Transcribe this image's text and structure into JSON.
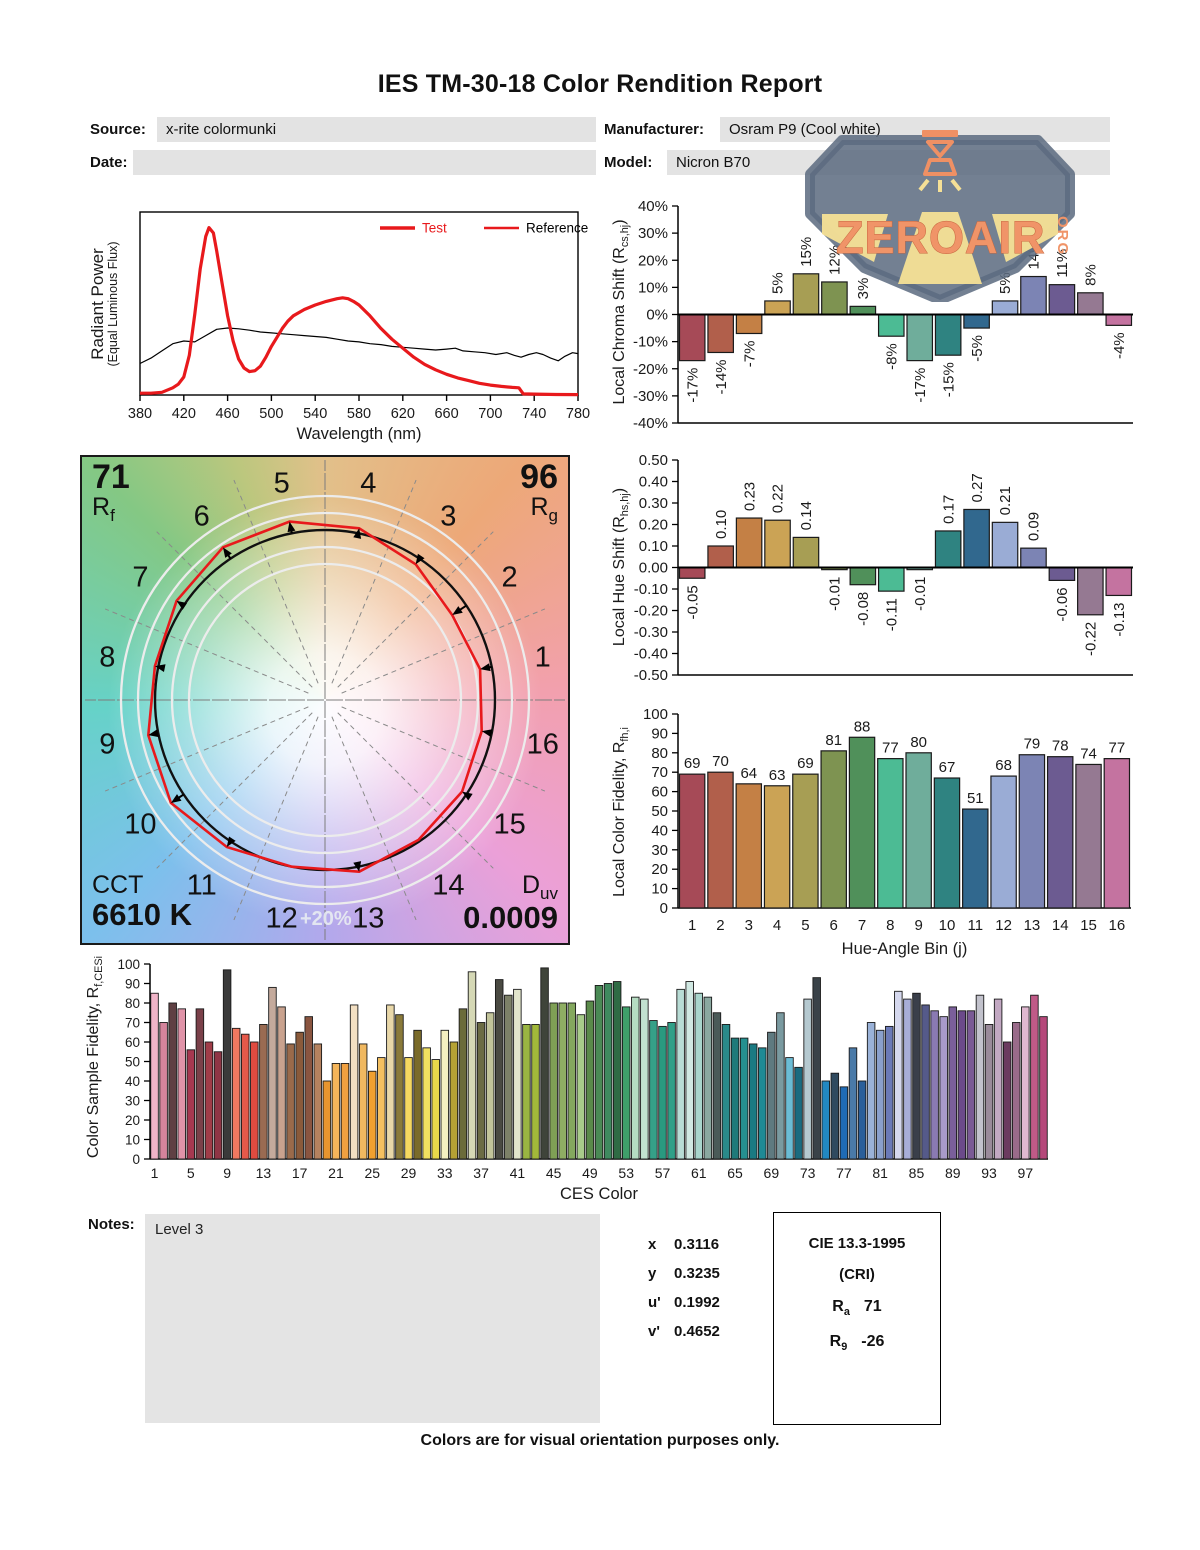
{
  "title": "IES TM-30-18 Color Rendition Report",
  "meta": {
    "source_label": "Source:",
    "source": "x-rite colormunki",
    "date_label": "Date:",
    "date": "",
    "manufacturer_label": "Manufacturer:",
    "manufacturer": "Osram P9 (Cool white)",
    "model_label": "Model:",
    "model": "Nicron B70"
  },
  "logo": {
    "word": "ZEROAIR",
    "org": "ORG"
  },
  "notes": {
    "label": "Notes:",
    "text": "Level 3"
  },
  "cie": {
    "x_label": "x",
    "x": "0.3116",
    "y_label": "y",
    "y": "0.3235",
    "u_label": "u'",
    "u": "0.1992",
    "v_label": "v'",
    "v": "0.4652"
  },
  "cri": {
    "title": "CIE 13.3-1995",
    "subtitle": "(CRI)",
    "ra_main": "R",
    "ra_sub": "a",
    "ra_value": "71",
    "r9_main": "R",
    "r9_sub": "9",
    "r9_value": "-26"
  },
  "footer": "Colors are for visual orientation purposes only.",
  "accent_red": "#e8191c",
  "hue_bin_colors": [
    "#a64a57",
    "#b15f4b",
    "#c48045",
    "#cba355",
    "#a79e54",
    "#7e9351",
    "#50905a",
    "#4cbb94",
    "#6fad9b",
    "#2f8381",
    "#31688e",
    "#9aacd5",
    "#7c84b4",
    "#6c5b91",
    "#957992",
    "#c473a0"
  ],
  "chart_data": [
    {
      "id": "spd",
      "type": "line",
      "xlabel": "Wavelength (nm)",
      "ylabel1": "Radiant Power",
      "ylabel2": "(Equal Luminous Flux)",
      "x_ticks": [
        380,
        420,
        460,
        500,
        540,
        580,
        620,
        660,
        700,
        740,
        780
      ],
      "legend": [
        {
          "label": "Test",
          "line_color": "#e8191c",
          "text_color": "#e8191c",
          "width": 3.4
        },
        {
          "label": "Reference",
          "line_color": "#e8191c",
          "text_color": "#000000",
          "width": 2.4
        }
      ],
      "series": [
        {
          "name": "Test",
          "color": "#e8191c",
          "width": 3.2,
          "x": [
            380,
            390,
            400,
            410,
            415,
            420,
            425,
            430,
            435,
            440,
            443,
            447,
            450,
            455,
            460,
            465,
            470,
            475,
            480,
            485,
            490,
            495,
            500,
            505,
            510,
            515,
            520,
            530,
            540,
            550,
            560,
            565,
            570,
            575,
            580,
            590,
            600,
            610,
            620,
            630,
            640,
            650,
            660,
            670,
            680,
            690,
            700,
            710,
            720,
            726,
            730,
            740,
            760,
            780
          ],
          "y": [
            0.01,
            0.01,
            0.015,
            0.04,
            0.06,
            0.1,
            0.22,
            0.45,
            0.7,
            0.88,
            0.93,
            0.9,
            0.8,
            0.62,
            0.44,
            0.3,
            0.2,
            0.15,
            0.13,
            0.135,
            0.16,
            0.21,
            0.27,
            0.32,
            0.37,
            0.41,
            0.44,
            0.475,
            0.5,
            0.52,
            0.535,
            0.54,
            0.535,
            0.52,
            0.5,
            0.44,
            0.37,
            0.31,
            0.26,
            0.21,
            0.17,
            0.14,
            0.115,
            0.095,
            0.08,
            0.065,
            0.055,
            0.048,
            0.042,
            0.04,
            0.006,
            0.005,
            0.003,
            0.002
          ]
        },
        {
          "name": "Reference",
          "color": "#000000",
          "width": 1.2,
          "x": [
            380,
            390,
            400,
            410,
            420,
            430,
            440,
            450,
            460,
            470,
            480,
            490,
            500,
            510,
            520,
            530,
            540,
            550,
            560,
            570,
            580,
            590,
            600,
            610,
            620,
            630,
            640,
            650,
            660,
            668,
            675,
            685,
            695,
            705,
            715,
            722,
            728,
            735,
            742,
            748,
            755,
            762,
            768,
            775,
            780
          ],
          "y": [
            0.175,
            0.205,
            0.245,
            0.285,
            0.3,
            0.295,
            0.33,
            0.365,
            0.372,
            0.368,
            0.36,
            0.35,
            0.345,
            0.34,
            0.335,
            0.33,
            0.325,
            0.32,
            0.31,
            0.3,
            0.295,
            0.285,
            0.28,
            0.27,
            0.265,
            0.26,
            0.255,
            0.25,
            0.255,
            0.26,
            0.245,
            0.24,
            0.235,
            0.225,
            0.235,
            0.22,
            0.21,
            0.225,
            0.235,
            0.225,
            0.205,
            0.19,
            0.215,
            0.235,
            0.23
          ]
        }
      ]
    },
    {
      "id": "chroma",
      "type": "bar",
      "ylabel_prefix": "Local Chroma Shift (R",
      "ylabel_sub": "cs,hj",
      "ylabel_suffix": ")",
      "ylim": [
        -40,
        40
      ],
      "y_ticks": [
        "40%",
        "30%",
        "20%",
        "10%",
        "0%",
        "-10%",
        "-20%",
        "-30%",
        "-40%"
      ],
      "values": [
        -17,
        -14,
        -7,
        5,
        15,
        12,
        3,
        -8,
        -17,
        -15,
        -5,
        5,
        14,
        11,
        8,
        -4
      ],
      "labels": [
        "-17%",
        "-14%",
        "-7%",
        "5%",
        "15%",
        "12%",
        "3%",
        "-8%",
        "-17%",
        "-15%",
        "-5%",
        "5%",
        "14%",
        "11%",
        "8%",
        "-4%"
      ]
    },
    {
      "id": "hue",
      "type": "bar",
      "ylabel_prefix": "Local Hue Shift (R",
      "ylabel_sub": "hs,hj",
      "ylabel_suffix": ")",
      "ylim": [
        -0.5,
        0.5
      ],
      "y_ticks": [
        "0.50",
        "0.40",
        "0.30",
        "0.20",
        "0.10",
        "0.00",
        "-0.10",
        "-0.20",
        "-0.30",
        "-0.40",
        "-0.50"
      ],
      "values": [
        -0.05,
        0.1,
        0.23,
        0.22,
        0.14,
        -0.01,
        -0.08,
        -0.11,
        -0.01,
        0.17,
        0.27,
        0.21,
        0.09,
        -0.06,
        -0.22,
        -0.13
      ],
      "labels": [
        "-0.05",
        "0.10",
        "0.23",
        "0.22",
        "0.14",
        "-0.01",
        "-0.08",
        "-0.11",
        "-0.01",
        "0.17",
        "0.27",
        "0.21",
        "0.09",
        "-0.06",
        "-0.22",
        "-0.13"
      ]
    },
    {
      "id": "locfid",
      "type": "bar",
      "ylabel_prefix": "Local Color Fidelity, R",
      "ylabel_sub": "fh,i",
      "ylabel_suffix": "",
      "xlabel": "Hue-Angle Bin (j)",
      "ylim": [
        0,
        100
      ],
      "y_ticks": [
        "100",
        "90",
        "80",
        "70",
        "60",
        "50",
        "40",
        "30",
        "20",
        "10",
        "0"
      ],
      "categories": [
        1,
        2,
        3,
        4,
        5,
        6,
        7,
        8,
        9,
        10,
        11,
        12,
        13,
        14,
        15,
        16
      ],
      "values": [
        69,
        70,
        64,
        63,
        69,
        81,
        88,
        77,
        80,
        67,
        51,
        68,
        79,
        78,
        74,
        77
      ],
      "labels": [
        "69",
        "70",
        "64",
        "63",
        "69",
        "81",
        "88",
        "77",
        "80",
        "67",
        "51",
        "68",
        "79",
        "78",
        "74",
        "77"
      ]
    },
    {
      "id": "ces",
      "type": "bar",
      "ylabel_prefix": "Color Sample Fidelity, R",
      "ylabel_sub": "f,CESi",
      "ylabel_suffix": "",
      "xlabel": "CES Color",
      "ylim": [
        0,
        100
      ],
      "y_ticks": [
        "100",
        "90",
        "80",
        "70",
        "60",
        "50",
        "40",
        "30",
        "20",
        "10",
        "0"
      ],
      "x_ticks": [
        1,
        5,
        9,
        13,
        17,
        21,
        25,
        29,
        33,
        37,
        41,
        45,
        49,
        53,
        57,
        61,
        65,
        69,
        73,
        77,
        81,
        85,
        89,
        93,
        97
      ],
      "values": [
        85,
        70,
        80,
        77,
        56,
        77,
        60,
        55,
        97,
        67,
        64,
        60,
        69,
        88,
        78,
        59,
        65,
        73,
        59,
        40,
        49,
        49,
        79,
        59,
        45,
        52,
        79,
        74,
        52,
        66,
        57,
        51,
        66,
        60,
        77,
        96,
        70,
        75,
        92,
        84,
        87,
        69,
        69,
        98,
        80,
        80,
        80,
        74,
        81,
        89,
        90,
        91,
        78,
        83,
        82,
        71,
        68,
        70,
        87,
        91,
        85,
        83,
        75,
        69,
        62,
        62,
        59,
        57,
        65,
        75,
        52,
        47,
        82,
        93,
        40,
        44,
        37,
        57,
        40,
        70,
        66,
        68,
        86,
        82,
        85,
        79,
        76,
        73,
        78,
        76,
        76,
        84,
        69,
        82,
        60,
        70,
        78,
        84,
        73
      ],
      "colors": [
        "#f0b4c8",
        "#d4849c",
        "#5f4043",
        "#e093a8",
        "#a63850",
        "#7a4049",
        "#a03c48",
        "#8f3545",
        "#3a3a3a",
        "#f07860",
        "#e5594a",
        "#e04b40",
        "#9a6b52",
        "#c4aa9c",
        "#c9a28e",
        "#9a6a4a",
        "#8a5a3a",
        "#8a5540",
        "#b5825f",
        "#e8952e",
        "#f5b55a",
        "#f0a040",
        "#f2dfc2",
        "#f0b860",
        "#f0a030",
        "#f5c060",
        "#e9d8a9",
        "#8a7a3a",
        "#f5d860",
        "#7a6b2a",
        "#f0e060",
        "#e8d84a",
        "#f5f0c0",
        "#b5a234",
        "#6b6b3a",
        "#d5d8b5",
        "#6b6b44",
        "#c2c49a",
        "#4a4a42",
        "#7d8168",
        "#e2e5cc",
        "#9ab542",
        "#a2b83a",
        "#3f443a",
        "#7fa055",
        "#8fae63",
        "#84a85e",
        "#a8cc8a",
        "#5a8a4a",
        "#4a8a55",
        "#3f8a5f",
        "#2f6b44",
        "#3fa06a",
        "#b5dcc2",
        "#c2e2d0",
        "#35a088",
        "#2a9a80",
        "#30a088",
        "#b8dcd5",
        "#d0e8e2",
        "#a8d5cc",
        "#8aa8a0",
        "#4a5a58",
        "#2a8a8a",
        "#1f7a7a",
        "#259090",
        "#1a7a82",
        "#1f8a95",
        "#5f7a80",
        "#7a9aa0",
        "#6bbcd5",
        "#1a6b80",
        "#b5c9d0",
        "#3a4248",
        "#2288c2",
        "#2f4a5f",
        "#1f6bb5",
        "#4a7aa8",
        "#2a5f9a",
        "#9ab2d8",
        "#8aa0cc",
        "#6b7ab8",
        "#d5d8ee",
        "#a8aed8",
        "#3a3f4a",
        "#555a8a",
        "#8a7ab2",
        "#a89ac9",
        "#7a5f9a",
        "#6b4a8a",
        "#7a5a95",
        "#c2c2cc",
        "#9a8a9a",
        "#c2a8c2",
        "#6b3a5f",
        "#9a6b8a",
        "#e0b8d0",
        "#c05a87",
        "#b5487a"
      ]
    },
    {
      "id": "vector",
      "type": "color-vector-graphic",
      "rf": "71",
      "rf_main": "R",
      "rf_sub": "f",
      "rg": "96",
      "rg_main": "R",
      "rg_sub": "g",
      "cct_label": "CCT",
      "cct": "6610 K",
      "duv_main": "D",
      "duv_sub": "uv",
      "duv": "0.0009",
      "ring_label": "+20%",
      "bins": [
        1,
        2,
        3,
        4,
        5,
        6,
        7,
        8,
        9,
        10,
        11,
        12,
        13,
        14,
        15,
        16
      ],
      "red_radii": [
        0.93,
        0.9,
        0.96,
        1.03,
        1.07,
        1.08,
        1.05,
        1.02,
        1.06,
        1.09,
        1.04,
        1.0,
        1.03,
        0.99,
        0.97,
        0.94
      ]
    }
  ]
}
